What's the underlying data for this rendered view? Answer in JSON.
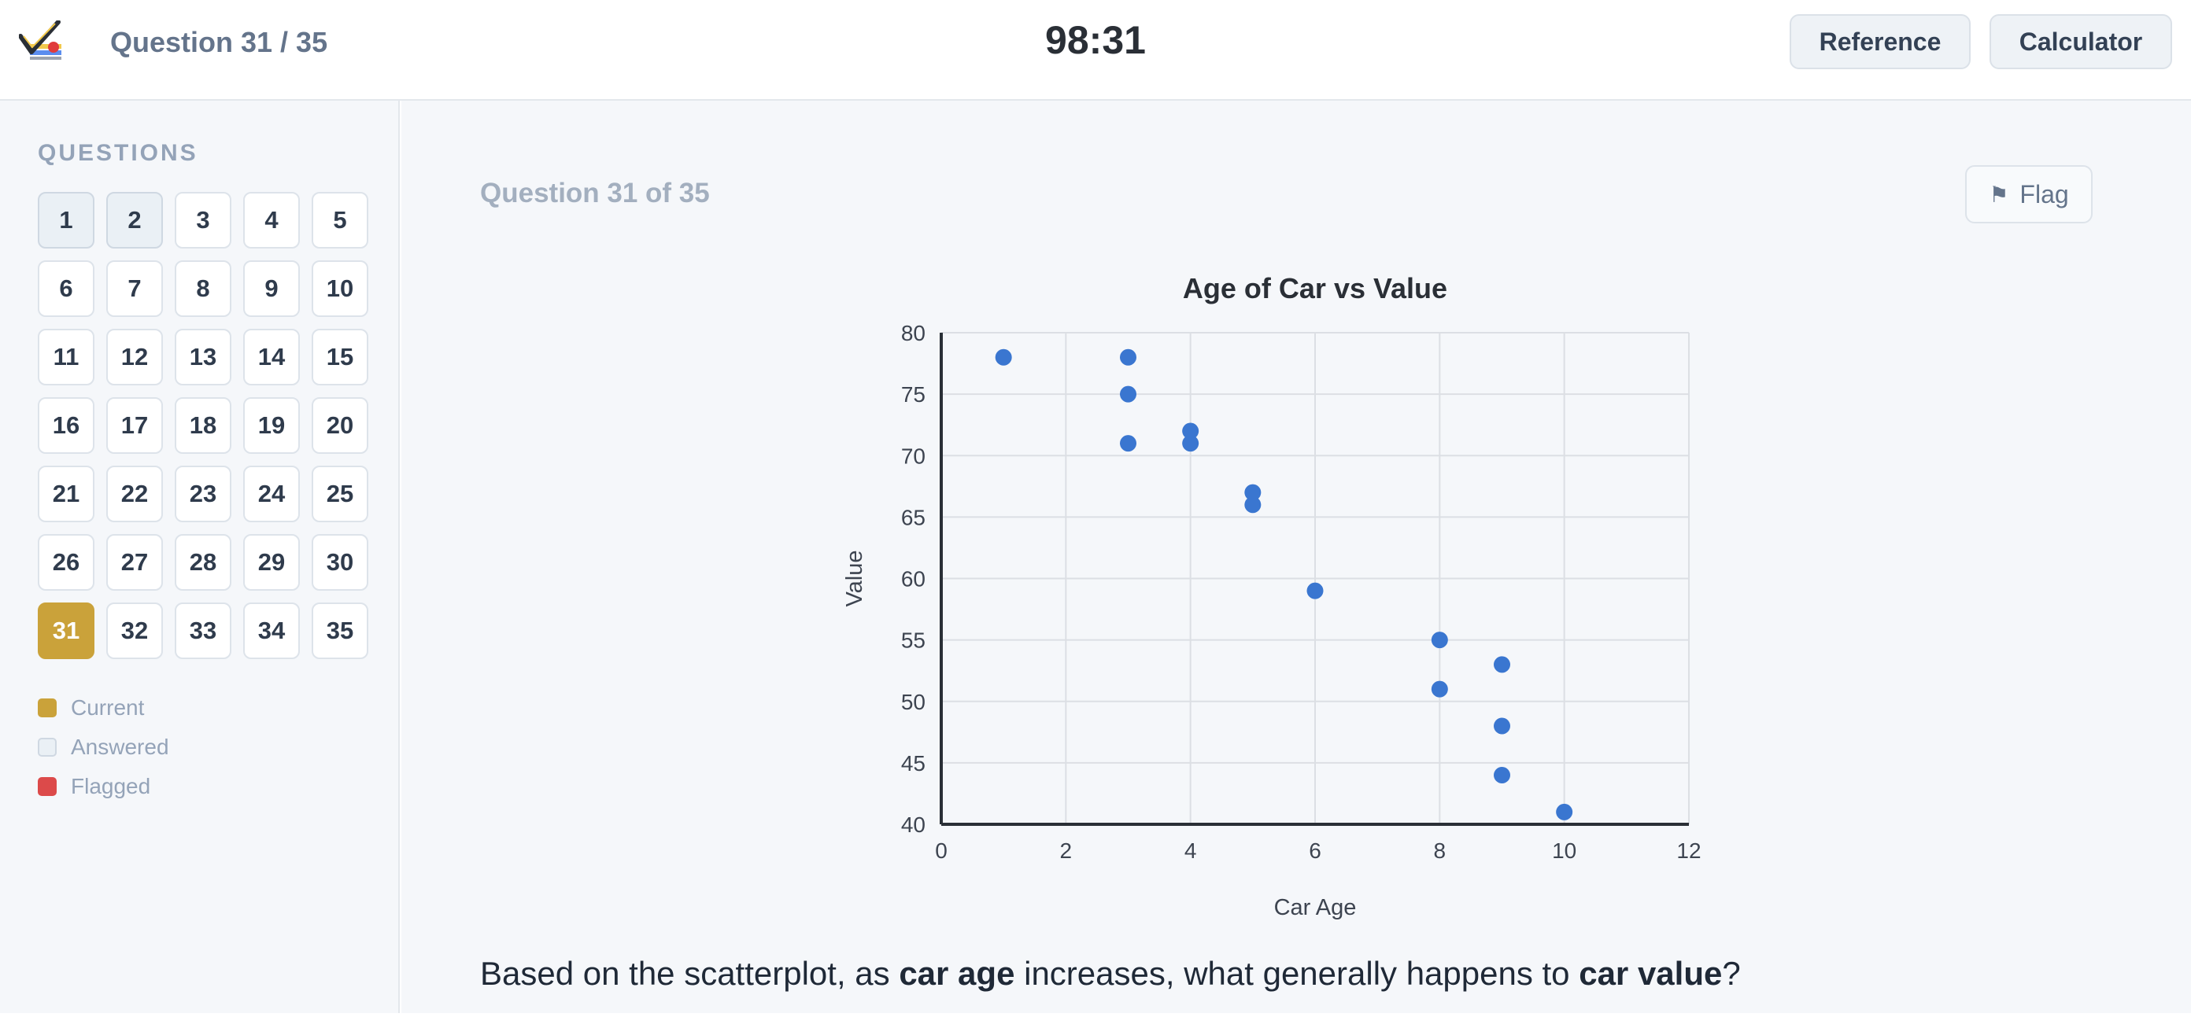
{
  "header": {
    "question_counter": "Question 31 / 35",
    "timer": "98:31",
    "reference_label": "Reference",
    "calculator_label": "Calculator"
  },
  "sidebar": {
    "title": "QUESTIONS",
    "questions": [
      {
        "n": "1",
        "state": "answered"
      },
      {
        "n": "2",
        "state": "answered"
      },
      {
        "n": "3",
        "state": ""
      },
      {
        "n": "4",
        "state": ""
      },
      {
        "n": "5",
        "state": ""
      },
      {
        "n": "6",
        "state": ""
      },
      {
        "n": "7",
        "state": ""
      },
      {
        "n": "8",
        "state": ""
      },
      {
        "n": "9",
        "state": ""
      },
      {
        "n": "10",
        "state": ""
      },
      {
        "n": "11",
        "state": ""
      },
      {
        "n": "12",
        "state": ""
      },
      {
        "n": "13",
        "state": ""
      },
      {
        "n": "14",
        "state": ""
      },
      {
        "n": "15",
        "state": ""
      },
      {
        "n": "16",
        "state": ""
      },
      {
        "n": "17",
        "state": ""
      },
      {
        "n": "18",
        "state": ""
      },
      {
        "n": "19",
        "state": ""
      },
      {
        "n": "20",
        "state": ""
      },
      {
        "n": "21",
        "state": ""
      },
      {
        "n": "22",
        "state": ""
      },
      {
        "n": "23",
        "state": ""
      },
      {
        "n": "24",
        "state": ""
      },
      {
        "n": "25",
        "state": ""
      },
      {
        "n": "26",
        "state": ""
      },
      {
        "n": "27",
        "state": ""
      },
      {
        "n": "28",
        "state": ""
      },
      {
        "n": "29",
        "state": ""
      },
      {
        "n": "30",
        "state": ""
      },
      {
        "n": "31",
        "state": "current"
      },
      {
        "n": "32",
        "state": ""
      },
      {
        "n": "33",
        "state": ""
      },
      {
        "n": "34",
        "state": ""
      },
      {
        "n": "35",
        "state": ""
      }
    ],
    "legend": [
      {
        "label": "Current",
        "color": "#caa23a"
      },
      {
        "label": "Answered",
        "color": "#eaf0f5"
      },
      {
        "label": "Flagged",
        "color": "#dc4a4a"
      }
    ]
  },
  "main": {
    "question_heading": "Question 31 of 35",
    "flag_label": "Flag",
    "question_parts": [
      "Based on the scatterplot, as ",
      "car age",
      " increases, what generally happens to ",
      "car value",
      "?"
    ]
  },
  "chart_data": {
    "type": "scatter",
    "title": "Age of Car vs Value",
    "xlabel": "Car Age",
    "ylabel": "Value",
    "xlim": [
      0,
      12
    ],
    "ylim": [
      40,
      80
    ],
    "xticks": [
      0,
      2,
      4,
      6,
      8,
      10,
      12
    ],
    "yticks": [
      40,
      45,
      50,
      55,
      60,
      65,
      70,
      75,
      80
    ],
    "grid": true,
    "point_color": "#3a76d0",
    "points": [
      {
        "x": 1,
        "y": 78
      },
      {
        "x": 3,
        "y": 78
      },
      {
        "x": 3,
        "y": 75
      },
      {
        "x": 3,
        "y": 71
      },
      {
        "x": 4,
        "y": 72
      },
      {
        "x": 4,
        "y": 71
      },
      {
        "x": 5,
        "y": 66
      },
      {
        "x": 5,
        "y": 67
      },
      {
        "x": 6,
        "y": 59
      },
      {
        "x": 8,
        "y": 55
      },
      {
        "x": 8,
        "y": 51
      },
      {
        "x": 9,
        "y": 53
      },
      {
        "x": 9,
        "y": 48
      },
      {
        "x": 9,
        "y": 44
      },
      {
        "x": 10,
        "y": 41
      }
    ]
  }
}
